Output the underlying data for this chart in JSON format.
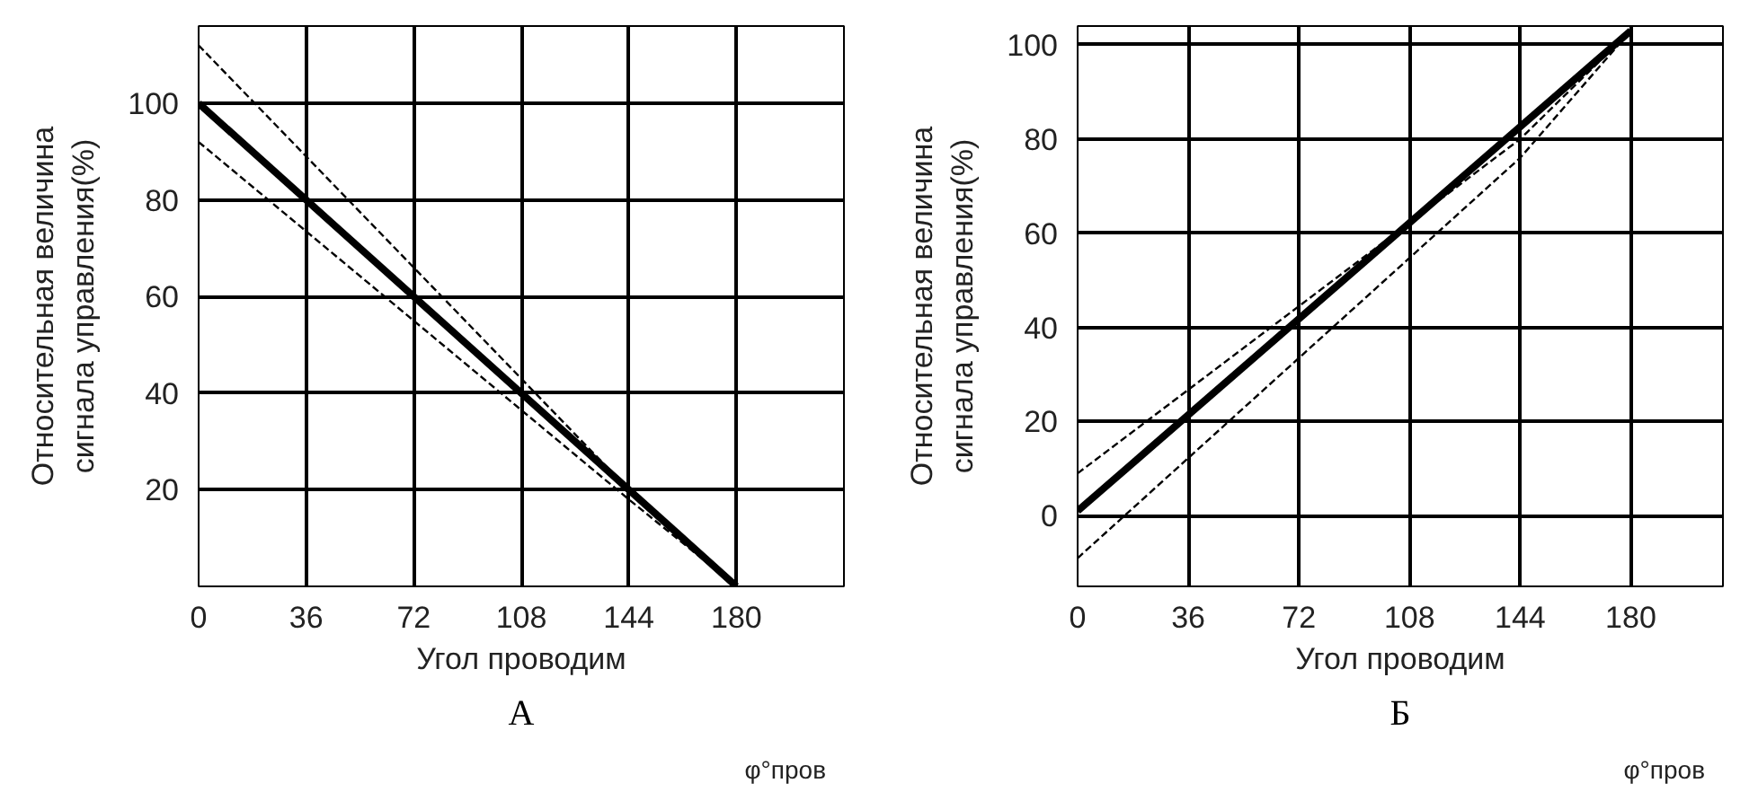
{
  "chart_data": [
    {
      "type": "line",
      "xlabel": "Угол проводим",
      "ylabel": "Относительная величина\nсигнала управления(%)",
      "annotations": [
        "φ°пров",
        "А"
      ],
      "xlim": [
        0,
        216
      ],
      "ylim": [
        0,
        116
      ],
      "xticks": [
        0,
        36,
        72,
        108,
        144,
        180
      ],
      "yticks": [
        20,
        40,
        60,
        80,
        100
      ],
      "grid": true,
      "series": [
        {
          "color": "#000000",
          "x": [
            0,
            180
          ],
          "values": [
            100,
            0
          ],
          "line_style": "solid"
        },
        {
          "color": "#000000",
          "x": [
            0,
            144,
            180
          ],
          "values": [
            112,
            20,
            0
          ],
          "line_style": "dashed"
        },
        {
          "color": "#000000",
          "x": [
            0,
            144,
            180
          ],
          "values": [
            92,
            18,
            0
          ],
          "line_style": "dashed"
        }
      ]
    },
    {
      "type": "line",
      "xlabel": "Угол проводим",
      "ylabel": "Относительная величина\nсигнала управления(%)",
      "annotations": [
        "φ°пров",
        "Б"
      ],
      "xlim": [
        0,
        210
      ],
      "ylim": [
        -15,
        104
      ],
      "xticks": [
        0,
        36,
        72,
        108,
        144,
        180
      ],
      "yticks": [
        0,
        20,
        40,
        60,
        80,
        100
      ],
      "grid": true,
      "series": [
        {
          "color": "#000000",
          "x": [
            0,
            180
          ],
          "values": [
            1,
            103
          ],
          "line_style": "solid"
        },
        {
          "color": "#000000",
          "x": [
            0,
            144,
            180
          ],
          "values": [
            9,
            80,
            103
          ],
          "line_style": "dashed"
        },
        {
          "color": "#000000",
          "x": [
            0,
            144,
            180
          ],
          "values": [
            -9,
            76,
            103
          ],
          "line_style": "dashed"
        }
      ]
    }
  ]
}
